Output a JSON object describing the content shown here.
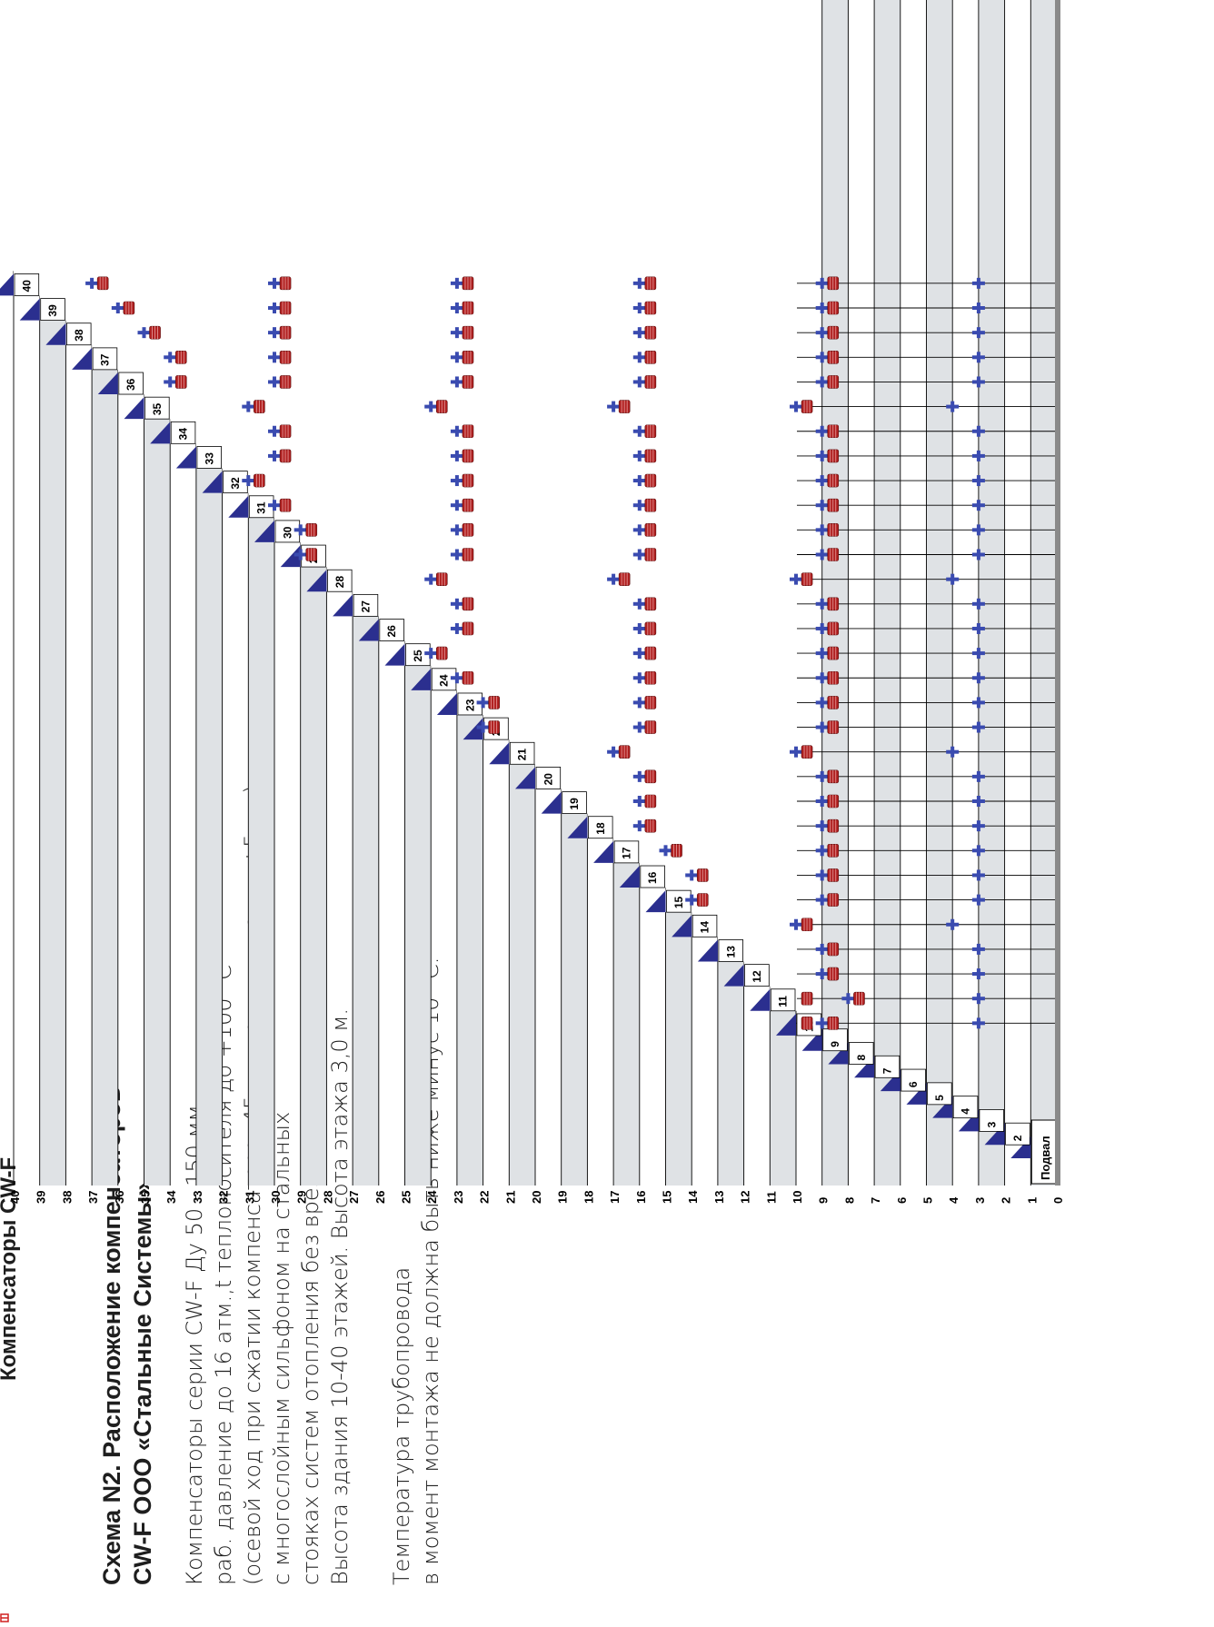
{
  "header": {
    "top_title": "Компенсаторы CW-F",
    "scheme_title_line1": "Схема N2. Расположение компенсаторов",
    "scheme_title_line2": "CW-F ООО «Стальные Системы»"
  },
  "description": [
    "Компенсаторы серии  CW-F Ду 50 - 150 мм.",
    "раб. давление до 16 атм.,t теплоносителя до +100 °С",
    "(осевой ход при  сжатии  компенсатора -45 мм,при  удлинении  +5 мм)",
    "с многослойным сильфоном на стальных",
    "стояках систем отопления без врезок!",
    "Высота  здания 10-40 этажей. Высота этажа 3,0 м."
  ],
  "note": [
    "Температура трубопровода",
    "в момент монтажа не должна быть ниже минус 10 °С."
  ],
  "basement_label": "Подвал",
  "floor_labels": [
    "1",
    "2",
    "3",
    "4",
    "5",
    "6",
    "7",
    "8",
    "9",
    "10",
    "11",
    "12",
    "13",
    "14",
    "15",
    "16",
    "17",
    "18",
    "19",
    "20",
    "21",
    "22",
    "23",
    "24",
    "25",
    "26",
    "27",
    "28",
    "29",
    "30",
    "31",
    "32",
    "33",
    "34",
    "35",
    "36",
    "37",
    "38",
    "39",
    "40"
  ],
  "level_labels": [
    "0",
    "1",
    "2",
    "3",
    "4",
    "5",
    "6",
    "7",
    "8",
    "9",
    "10",
    "11",
    "12",
    "13",
    "14",
    "15",
    "16",
    "17",
    "18",
    "19",
    "20",
    "21",
    "22",
    "23",
    "24",
    "25",
    "26",
    "27",
    "28",
    "29",
    "30",
    "31",
    "32",
    "33",
    "34",
    "35",
    "36",
    "37",
    "38",
    "39",
    "40"
  ],
  "colors": {
    "floor_tab": "#2b2f8f",
    "band_fill": "#dfe2e5",
    "fixed_support": "#3a4bb0",
    "compensator": "#b02020",
    "grid_line": "#000000",
    "riser_line": "#8a8a8a"
  },
  "diagram": {
    "buildings": 31,
    "first_building_height": 10,
    "risers_per_floor_segments": "each building column is a vertical riser from floor 0 up to its height",
    "compensator_rows": {
      "10": [
        9,
        10
      ],
      "11": [
        8,
        10
      ],
      "12": [
        9
      ],
      "13": [
        9
      ],
      "14": [
        10
      ],
      "15": [
        9,
        14
      ],
      "16": [
        9,
        14
      ],
      "17": [
        9,
        15
      ],
      "18": [
        9,
        16
      ],
      "19": [
        9,
        16
      ],
      "20": [
        9,
        16
      ],
      "21": [
        10,
        17
      ],
      "22": [
        9,
        16,
        22
      ],
      "23": [
        9,
        16,
        22
      ],
      "24": [
        9,
        16,
        23
      ],
      "25": [
        9,
        16,
        24
      ],
      "26": [
        9,
        16,
        23
      ],
      "27": [
        9,
        16,
        23
      ],
      "28": [
        10,
        17,
        24
      ],
      "29": [
        9,
        16,
        23,
        29
      ],
      "30": [
        9,
        16,
        23,
        29
      ],
      "31": [
        9,
        16,
        23,
        30
      ],
      "32": [
        9,
        16,
        23,
        31
      ],
      "33": [
        9,
        16,
        23,
        30
      ],
      "34": [
        9,
        16,
        23,
        30
      ],
      "35": [
        10,
        17,
        24,
        31
      ],
      "36": [
        9,
        16,
        23,
        30,
        34
      ],
      "37": [
        9,
        16,
        23,
        30,
        34
      ],
      "38": [
        9,
        16,
        23,
        30,
        35
      ],
      "39": [
        9,
        16,
        23,
        30,
        36
      ],
      "40": [
        9,
        16,
        23,
        30,
        37
      ]
    },
    "fixed_support_rows": {
      "10": [
        3,
        9
      ],
      "11": [
        3,
        8
      ],
      "12": [
        3,
        9
      ],
      "13": [
        3,
        9
      ],
      "14": [
        4,
        10
      ],
      "15": [
        3,
        9,
        14
      ],
      "16": [
        3,
        9,
        14
      ],
      "17": [
        3,
        9,
        15
      ],
      "18": [
        3,
        9,
        16
      ],
      "19": [
        3,
        9,
        16
      ],
      "20": [
        3,
        9,
        16
      ],
      "21": [
        4,
        10,
        17
      ],
      "22": [
        3,
        9,
        16,
        22
      ],
      "23": [
        3,
        9,
        16,
        22
      ],
      "24": [
        3,
        9,
        16,
        23
      ],
      "25": [
        3,
        9,
        16,
        24
      ],
      "26": [
        3,
        9,
        16,
        23
      ],
      "27": [
        3,
        9,
        16,
        23
      ],
      "28": [
        4,
        10,
        17,
        24
      ],
      "29": [
        3,
        9,
        16,
        23,
        29
      ],
      "30": [
        3,
        9,
        16,
        23,
        29
      ],
      "31": [
        3,
        9,
        16,
        23,
        30
      ],
      "32": [
        3,
        9,
        16,
        23,
        31
      ],
      "33": [
        3,
        9,
        16,
        23,
        30
      ],
      "34": [
        3,
        9,
        16,
        23,
        30
      ],
      "35": [
        4,
        10,
        17,
        24,
        31
      ],
      "36": [
        3,
        9,
        16,
        23,
        30,
        34
      ],
      "37": [
        3,
        9,
        16,
        23,
        30,
        34
      ],
      "38": [
        3,
        9,
        16,
        23,
        30,
        35
      ],
      "39": [
        3,
        9,
        16,
        23,
        30,
        36
      ],
      "40": [
        3,
        9,
        16,
        23,
        30,
        37
      ]
    }
  }
}
